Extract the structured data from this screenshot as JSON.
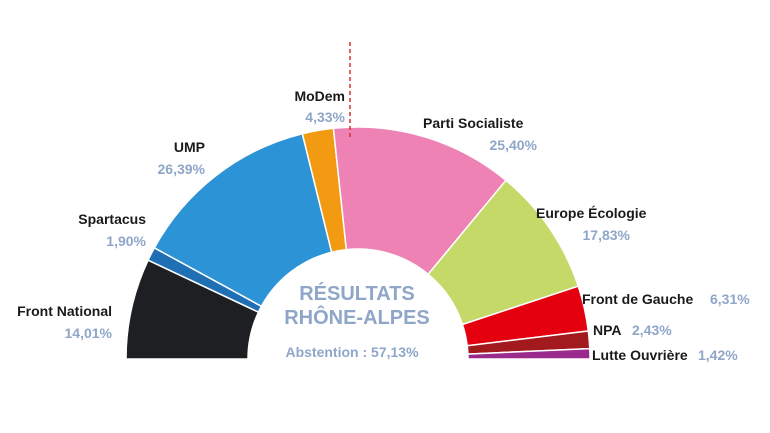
{
  "chart_data": {
    "type": "pie",
    "subtype": "hemicycle",
    "title_lines": [
      "RÉSULTATS",
      "RHÔNE-ALPES"
    ],
    "subtitle": "Abstention : 57,13%",
    "slices": [
      {
        "name": "Front National",
        "value_label": "14,01%",
        "value": 14.01,
        "color": "#1e1f22"
      },
      {
        "name": "Spartacus",
        "value_label": "1,90%",
        "value": 1.9,
        "color": "#1f6fb5"
      },
      {
        "name": "UMP",
        "value_label": "26,39%",
        "value": 26.39,
        "color": "#2b93d6"
      },
      {
        "name": "MoDem",
        "value_label": "4,33%",
        "value": 4.33,
        "color": "#f29a12"
      },
      {
        "name": "Parti Socialiste",
        "value_label": "25,40%",
        "value": 25.4,
        "color": "#ee82b4"
      },
      {
        "name": "Europe Écologie",
        "value_label": "17,83%",
        "value": 17.83,
        "color": "#c4d968"
      },
      {
        "name": "Front de Gauche",
        "value_label": "6,31%",
        "value": 6.31,
        "color": "#e4000f"
      },
      {
        "name": "NPA",
        "value_label": "2,43%",
        "value": 2.43,
        "color": "#a21a1e"
      },
      {
        "name": "Lutte Ouvrière",
        "value_label": "1,42%",
        "value": 1.42,
        "color": "#9a2a8c"
      }
    ],
    "majority_line": true,
    "majority_line_color": "#d0312d"
  }
}
